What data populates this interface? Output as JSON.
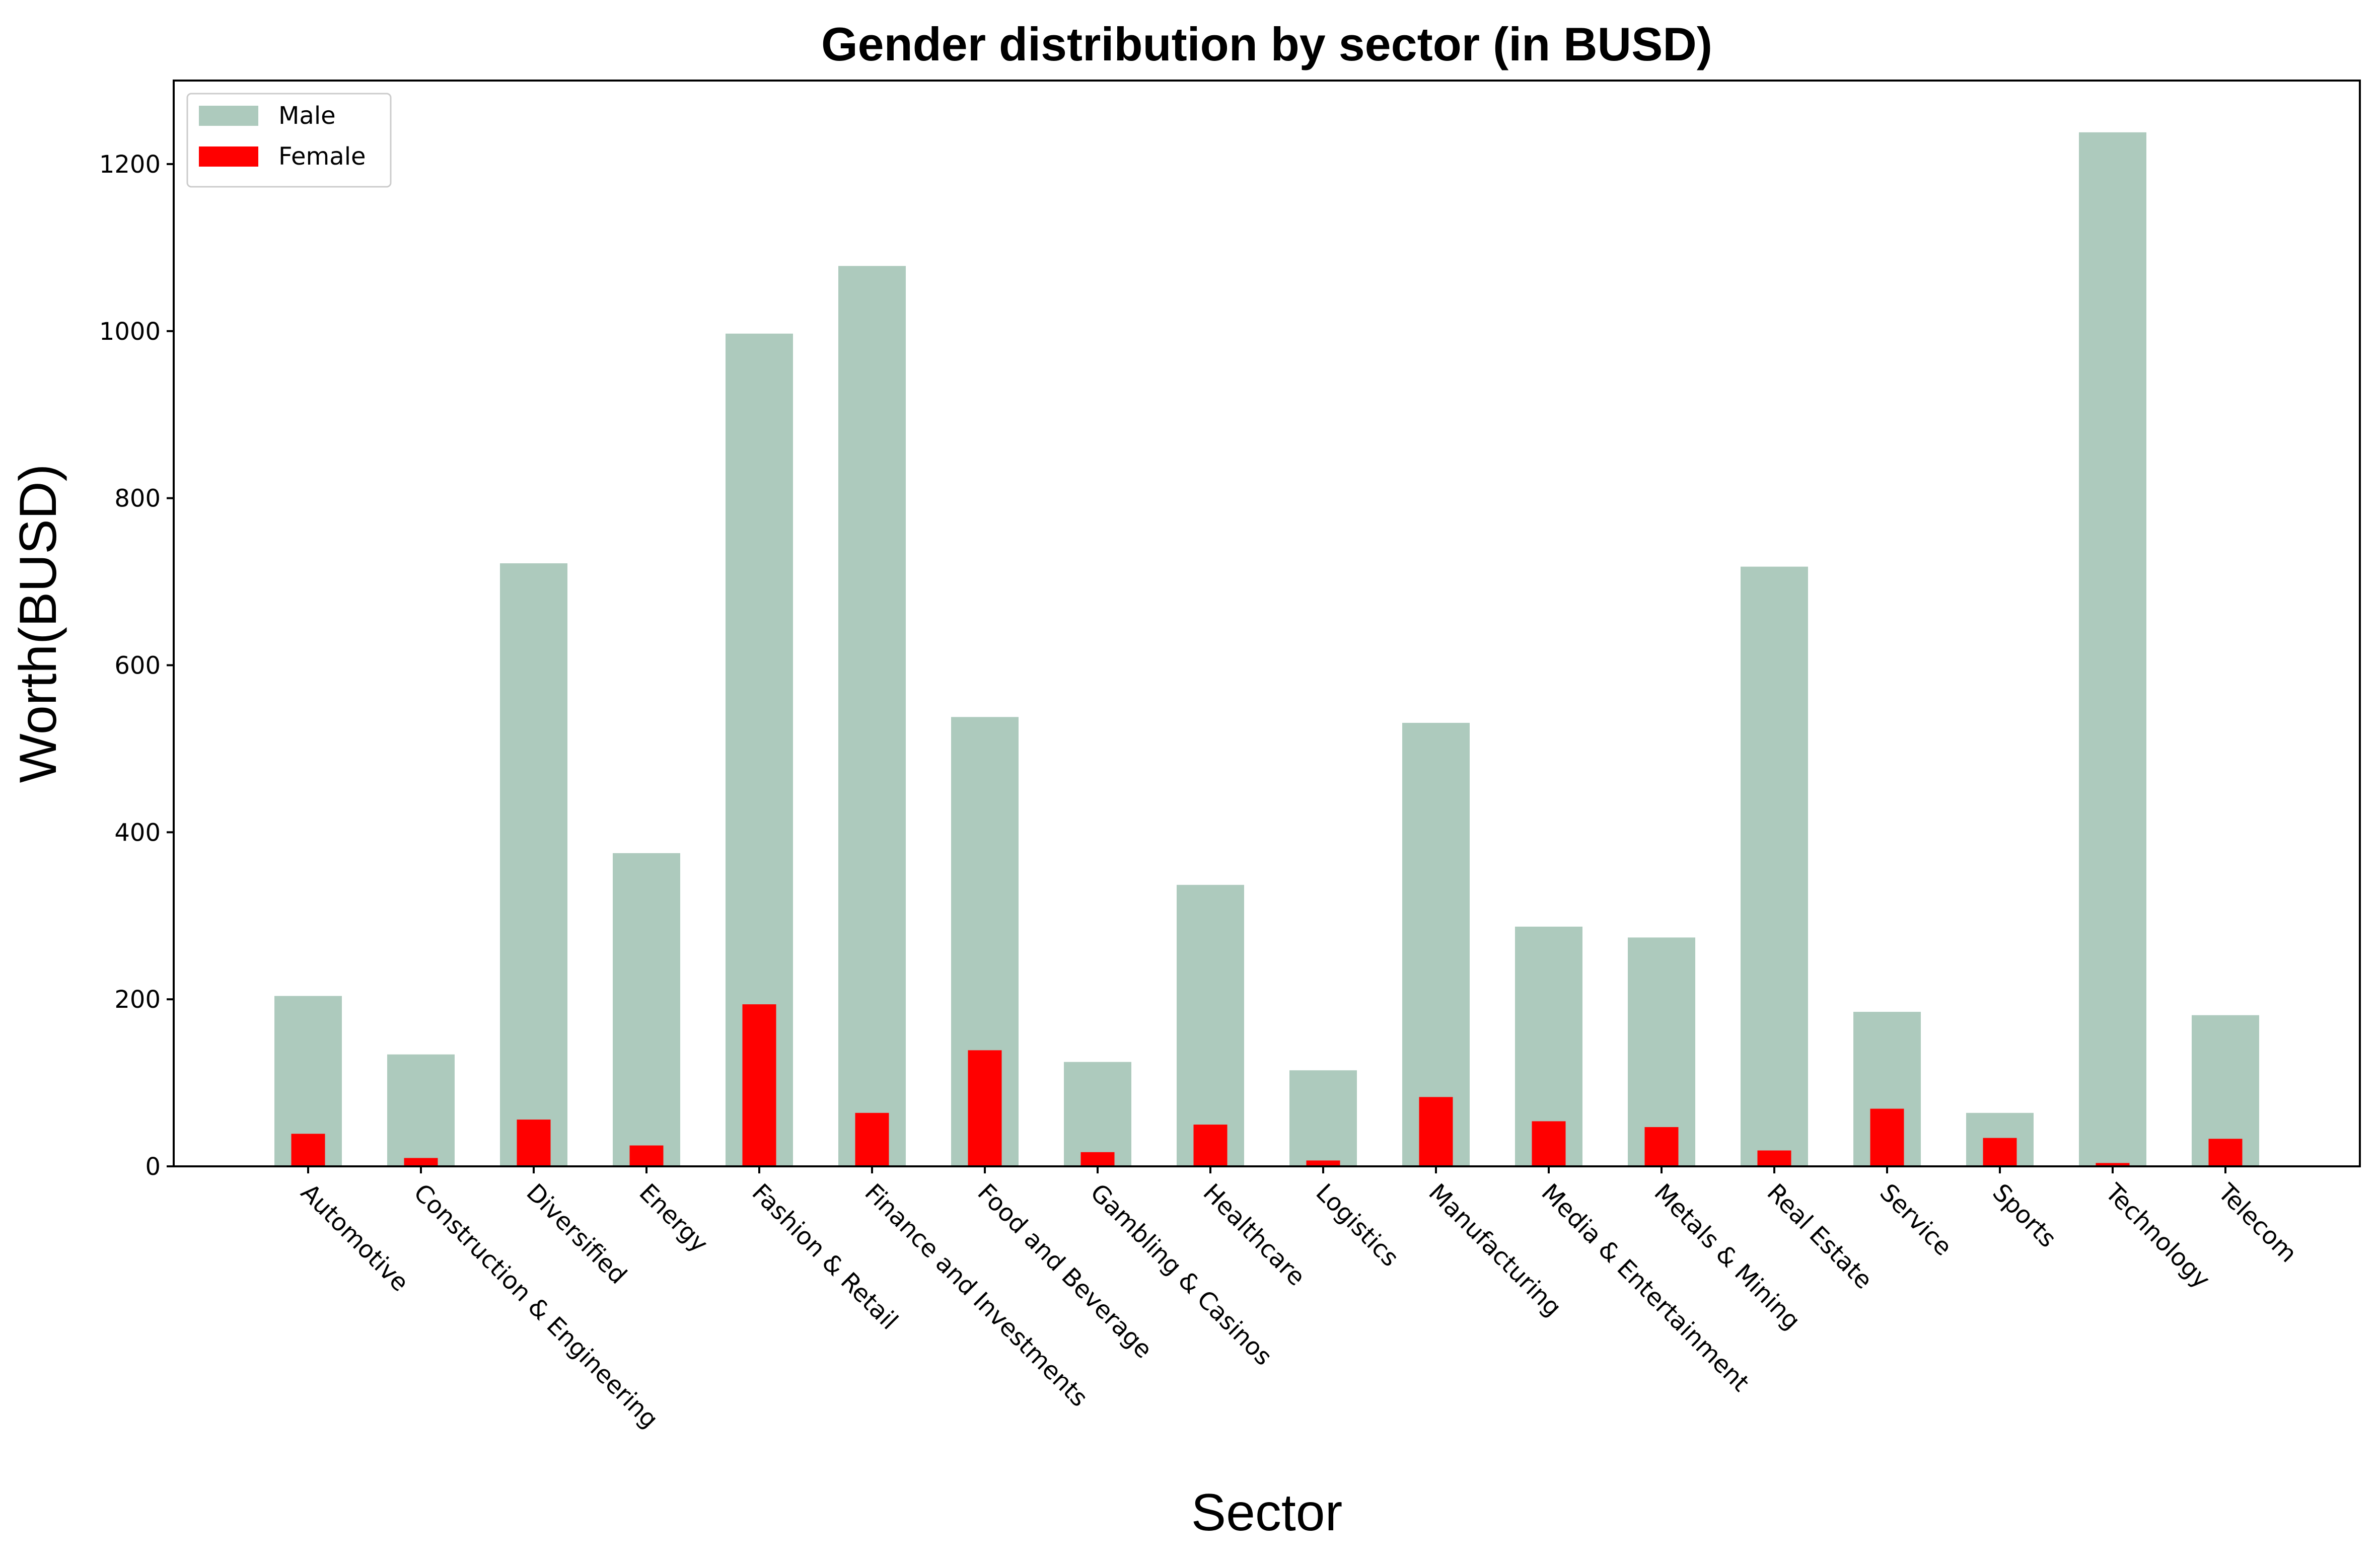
{
  "chart_data": {
    "type": "bar",
    "title": "Gender distribution by sector (in BUSD)",
    "xlabel": "Sector",
    "ylabel": "Worth(BUSD)",
    "ylim": [
      0,
      1300
    ],
    "yticks": [
      0,
      200,
      400,
      600,
      800,
      1000,
      1200
    ],
    "grid": false,
    "legend_position": "top-left",
    "categories": [
      "Automotive",
      "Construction & Engineering",
      "Diversified",
      "Energy",
      "Fashion & Retail",
      "Finance and Investments",
      "Food and Beverage",
      "Gambling & Casinos",
      "Healthcare",
      "Logistics",
      "Manufacturing",
      "Media & Entertainment",
      "Metals & Mining",
      "Real Estate",
      "Service",
      "Sports",
      "Technology",
      "Telecom"
    ],
    "series": [
      {
        "name": "Male",
        "color": "#adcabd",
        "values": [
          204,
          134,
          722,
          375,
          997,
          1078,
          538,
          125,
          337,
          115,
          531,
          287,
          274,
          718,
          185,
          64,
          1238,
          181
        ]
      },
      {
        "name": "Female",
        "color": "#ff0000",
        "values": [
          39,
          10,
          56,
          25,
          194,
          64,
          139,
          17,
          50,
          7,
          83,
          54,
          47,
          19,
          69,
          34,
          4,
          33
        ]
      }
    ]
  }
}
